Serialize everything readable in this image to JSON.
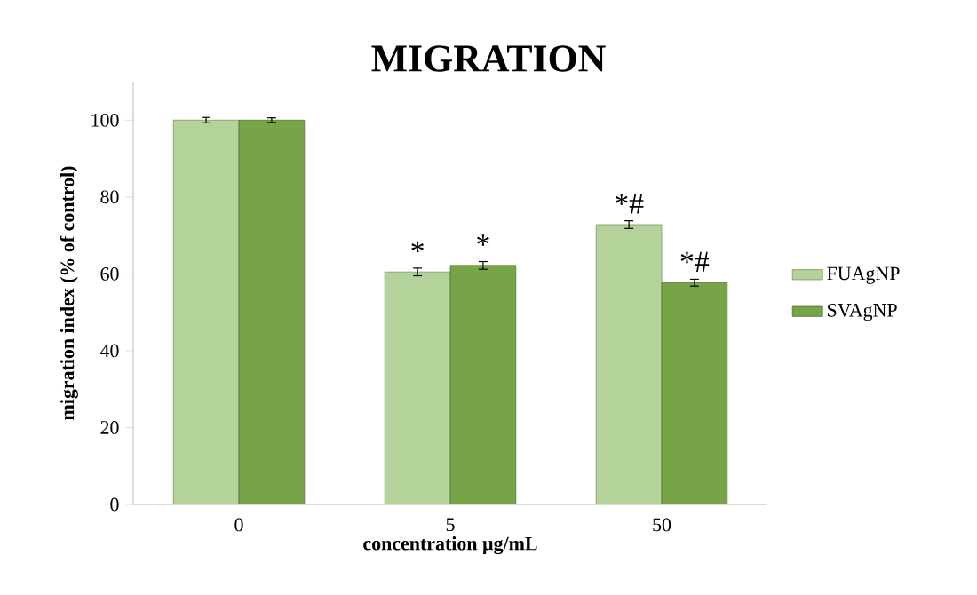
{
  "chart_data": {
    "type": "bar",
    "title": "MIGRATION",
    "xlabel": "concentration µg/mL",
    "ylabel": "migration index (% of control)",
    "categories": [
      "0",
      "5",
      "50"
    ],
    "series": [
      {
        "name": "FUAgNP",
        "color": "#b3d39a",
        "values": [
          100,
          60.5,
          72.8
        ],
        "errors": [
          0.7,
          1,
          1
        ]
      },
      {
        "name": "SVAgNP",
        "color": "#76a447",
        "values": [
          100,
          62.2,
          57.7
        ],
        "errors": [
          0.6,
          1,
          0.9
        ]
      }
    ],
    "ylim": [
      0,
      110
    ],
    "yticks": [
      0,
      20,
      40,
      60,
      80,
      100
    ],
    "legend": "right",
    "annotations": [
      {
        "text": "*",
        "x": "5",
        "y": 60.5
      },
      {
        "text": "*",
        "x": "5",
        "y": 62.2
      },
      {
        "text": "*#",
        "x": "50",
        "y": 72.8
      },
      {
        "text": "*#",
        "x": "50",
        "y": 57.7
      }
    ]
  }
}
